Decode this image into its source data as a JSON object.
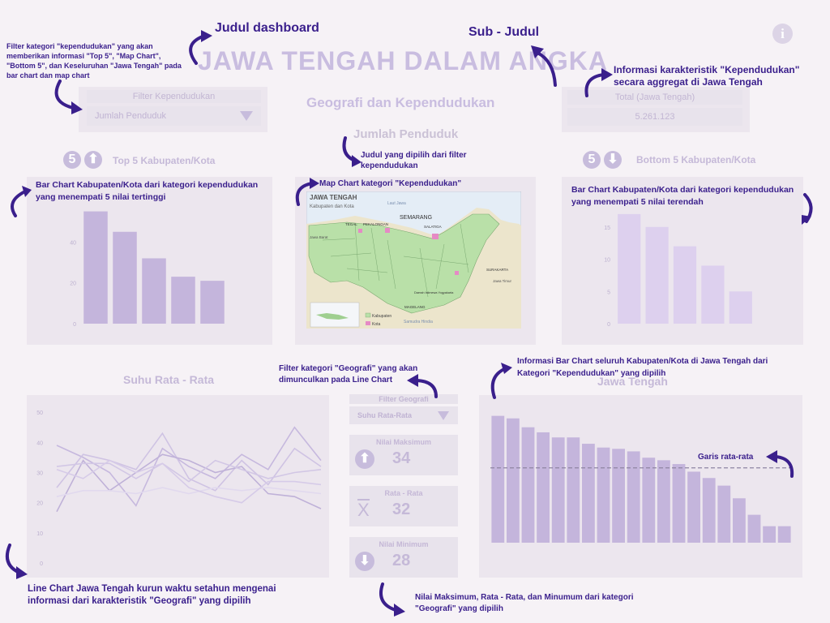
{
  "header": {
    "title": "JAWA TENGAH DALAM ANGKA",
    "subtitle": "Geografi dan Kependudukan"
  },
  "filter_population": {
    "title": "Filter Kependudukan",
    "selected": "Jumlah Penduduk"
  },
  "total_box": {
    "title": "Total (Jawa Tengah)",
    "value": "5.261.123"
  },
  "map_title": "Jumlah Penduduk",
  "top5": {
    "badge": "5",
    "title": "Top 5  Kabupaten/Kota"
  },
  "bottom5": {
    "badge": "5",
    "title": "Bottom 5 Kabupaten/Kota"
  },
  "map": {
    "title": "JAWA TENGAH",
    "subtitle": "Kabupaten dan Kota",
    "sea_north": "Laut Jawa",
    "sea_south": "Samudra Hindia",
    "west_label": "Jawa Barat",
    "east_label": "Jawa Timur",
    "legend_kabupaten": "Kabupaten",
    "legend_kota": "Kota",
    "cities": [
      "SEMARANG",
      "TEGAL",
      "PEKALONGAN",
      "SALATIGA",
      "SURAKARTA",
      "MAGELANG"
    ],
    "diy_label": "Daerah Istimewa Yogyakarta"
  },
  "line_section": {
    "title": "Suhu Rata - Rata"
  },
  "filter_geo": {
    "title": "Filter Geografi",
    "selected": "Suhu Rata-Rata"
  },
  "stats": {
    "max_label": "Nilai Maksimum",
    "max_value": "34",
    "avg_label": "Rata - Rata",
    "avg_value": "32",
    "avg_symbol": "X",
    "min_label": "Nilai Minimum",
    "min_value": "28"
  },
  "bar_all_section": {
    "title": "Jawa Tengah"
  },
  "annotations": {
    "judul_dashboard": "Judul dashboard",
    "sub_judul": "Sub - Judul",
    "filter_note": "Filter kategori \"kependudukan\"  yang akan memberikan informasi \"Top 5\", \"Map Chart\", \"Bottom 5\", dan Keseluruhan \"Jawa Tengah\" pada bar chart dan map chart",
    "total_note": "Informasi karakteristik \"Kependudukan\" secara aggregat di Jawa Tengah",
    "map_filter_note": "Judul yang dipilih dari filter kependudukan",
    "map_note": "Map Chart kategori \"Kependudukan\"",
    "top5_note": "Bar Chart Kabupaten/Kota dari kategori kependudukan yang menempati 5 nilai tertinggi",
    "bottom5_note": "Bar Chart Kabupaten/Kota dari kategori kependudukan yang menempati 5 nilai terendah",
    "geo_filter_note": "Filter kategori \"Geografi\" yang akan dimunculkan pada Line Chart",
    "bar_all_note": "Informasi Bar Chart seluruh Kabupaten/Kota di Jawa Tengah dari Kategori \"Kependudukan\" yang dipilih",
    "avg_line_note": "Garis rata-rata",
    "line_note": "Line Chart Jawa Tengah kurun waktu setahun mengenai informasi dari karakteristik \"Geografi\" yang dipilih",
    "stats_note": "Nilai Maksimum, Rata - Rata, dan Minumum dari kategori \"Geografi\" yang dipilih"
  },
  "colors": {
    "accent": "#3a1f8c",
    "bar_dark": "#c4b5dc",
    "bar_light": "#ddd0ee",
    "faint_text": "#c5b9d8"
  },
  "chart_data": [
    {
      "type": "bar",
      "name": "top5",
      "values": [
        55,
        45,
        32,
        23,
        21
      ],
      "ylim": [
        0,
        60
      ],
      "yticks": [
        0,
        20,
        40
      ]
    },
    {
      "type": "bar",
      "name": "bottom5",
      "values": [
        17,
        15,
        12,
        9,
        5
      ],
      "ylim": [
        0,
        19
      ],
      "yticks": [
        0,
        5,
        10,
        15
      ]
    },
    {
      "type": "line",
      "name": "temperature",
      "ylim": [
        0,
        53
      ],
      "yticks": [
        0,
        10,
        20,
        30,
        40,
        50
      ],
      "series": [
        {
          "values": [
            39,
            35,
            30,
            19,
            38,
            32,
            28,
            36,
            31,
            45,
            34
          ]
        },
        {
          "values": [
            25,
            36,
            34,
            31,
            43,
            28,
            24,
            34,
            26,
            38,
            32
          ]
        },
        {
          "values": [
            17,
            34,
            24,
            30,
            36,
            34,
            30,
            32,
            23,
            22,
            18
          ]
        },
        {
          "values": [
            32,
            33,
            33,
            28,
            33,
            27,
            34,
            31,
            28,
            30,
            31
          ]
        },
        {
          "values": [
            22,
            24,
            24,
            23,
            25,
            23,
            25,
            24,
            25,
            24,
            23
          ]
        },
        {
          "values": [
            31,
            28,
            34,
            30,
            33,
            25,
            22,
            20,
            27,
            27,
            26
          ]
        }
      ]
    },
    {
      "type": "bar",
      "name": "jawa_tengah",
      "values": [
        100,
        98,
        91,
        87,
        83,
        83,
        78,
        75,
        74,
        72,
        67,
        65,
        62,
        56,
        51,
        45,
        35,
        22,
        13,
        13
      ],
      "ylim": [
        0,
        110
      ],
      "average": 59
    }
  ]
}
